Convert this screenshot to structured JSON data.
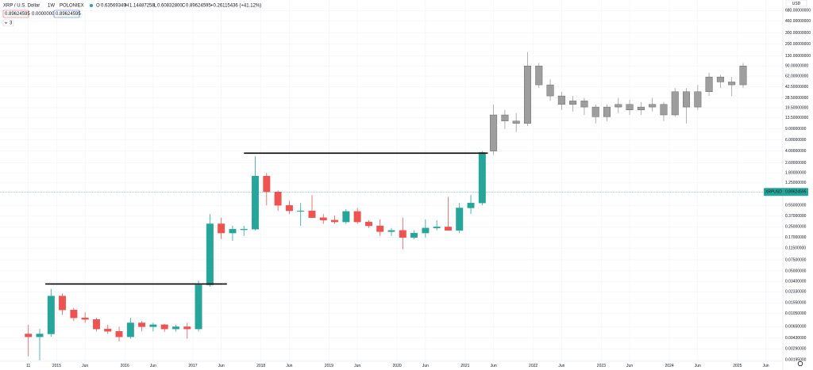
{
  "chart_data": {
    "type": "candlestick",
    "title": "XRP / U.S. Dollar",
    "interval": "1W",
    "exchange": "POLONIEX",
    "readout": {
      "o_label": "O",
      "o": "0.63569349",
      "h_label": "H",
      "h": "1.14487258",
      "l_label": "L",
      "l": "0.60832800",
      "c_label": "C",
      "c": "0.89624595",
      "change": "+0.26115436 (+41.12%)"
    },
    "inputs": [
      "0.89624595",
      "0.00000000",
      "0.89624595"
    ],
    "indicator_count": "3",
    "currency": "USD",
    "symbol": "XRPUSD",
    "last_price": {
      "value": 0.89624595,
      "label": "0.89624595"
    },
    "log_scale": true,
    "grid": true,
    "xlim": [
      "2014-03",
      "2025-09"
    ],
    "ylim": [
      0.00184,
      1000
    ],
    "xticks": [
      {
        "value": "2014-08",
        "label": "11"
      },
      {
        "value": "2015-01",
        "label": "2015"
      },
      {
        "value": "2015-06",
        "label": "Jun"
      },
      {
        "value": "2016-01",
        "label": "2016"
      },
      {
        "value": "2016-06",
        "label": "Jun"
      },
      {
        "value": "2017-01",
        "label": "2017"
      },
      {
        "value": "2017-06",
        "label": "Jun"
      },
      {
        "value": "2018-01",
        "label": "2018"
      },
      {
        "value": "2018-06",
        "label": "Jun"
      },
      {
        "value": "2019-01",
        "label": "2019"
      },
      {
        "value": "2019-06",
        "label": "Jun"
      },
      {
        "value": "2020-01",
        "label": "2020"
      },
      {
        "value": "2020-06",
        "label": "Jun"
      },
      {
        "value": "2021-01",
        "label": "2021"
      },
      {
        "value": "2021-06",
        "label": "Jun"
      },
      {
        "value": "2022-01",
        "label": "2022"
      },
      {
        "value": "2022-06",
        "label": "Jun"
      },
      {
        "value": "2023-01",
        "label": "2023"
      },
      {
        "value": "2023-06",
        "label": "Jun"
      },
      {
        "value": "2024-01",
        "label": "2024"
      },
      {
        "value": "2024-06",
        "label": "Jun"
      },
      {
        "value": "2025-01",
        "label": "2025"
      },
      {
        "value": "2025-06",
        "label": "Jun"
      }
    ],
    "yticks": [
      {
        "value": 680,
        "label": "680.00000000"
      },
      {
        "value": 460,
        "label": "460.00000000"
      },
      {
        "value": 300,
        "label": "300.00000000"
      },
      {
        "value": 200,
        "label": "200.00000000"
      },
      {
        "value": 130,
        "label": "130.00000000"
      },
      {
        "value": 90,
        "label": "90.00000000"
      },
      {
        "value": 62,
        "label": "62.00000000"
      },
      {
        "value": 42,
        "label": "42.50000000"
      },
      {
        "value": 28,
        "label": "28.50000000"
      },
      {
        "value": 19.5,
        "label": "19.50000000"
      },
      {
        "value": 13.5,
        "label": "13.50000000"
      },
      {
        "value": 9,
        "label": "9.00000000"
      },
      {
        "value": 6,
        "label": "6.00000000"
      },
      {
        "value": 4,
        "label": "4.00000000"
      },
      {
        "value": 2.6,
        "label": "2.60000000"
      },
      {
        "value": 1.8,
        "label": "1.80000000"
      },
      {
        "value": 1.25,
        "label": "1.25000000"
      },
      {
        "value": 0.55,
        "label": "0.55000000"
      },
      {
        "value": 0.37,
        "label": "0.37000000"
      },
      {
        "value": 0.25,
        "label": "0.25000000"
      },
      {
        "value": 0.17,
        "label": "0.17000000"
      },
      {
        "value": 0.115,
        "label": "0.11500000"
      },
      {
        "value": 0.075,
        "label": "0.07500000"
      },
      {
        "value": 0.05,
        "label": "0.05000000"
      },
      {
        "value": 0.034,
        "label": "0.03400000"
      },
      {
        "value": 0.0233,
        "label": "0.02330000"
      },
      {
        "value": 0.0155,
        "label": "0.01550000"
      },
      {
        "value": 0.0105,
        "label": "0.01050000"
      },
      {
        "value": 0.0065,
        "label": "0.00650000"
      },
      {
        "value": 0.0043,
        "label": "0.00430000"
      },
      {
        "value": 0.0029,
        "label": "0.00290000"
      },
      {
        "value": 0.00195,
        "label": "0.00195000"
      }
    ],
    "hlines": [
      {
        "value": 0.031,
        "from": "2014-11",
        "to": "2017-07"
      },
      {
        "value": 3.7,
        "from": "2017-10",
        "to": "2021-05"
      }
    ],
    "series": [
      {
        "up_color": "#26a69a",
        "down_color": "#ef5350",
        "x": [
          "2014-08",
          "2014-10",
          "2014-12",
          "2015-02",
          "2015-04",
          "2015-06",
          "2015-08",
          "2015-10",
          "2015-12",
          "2016-02",
          "2016-04",
          "2016-06",
          "2016-08",
          "2016-10",
          "2016-12",
          "2017-02",
          "2017-04",
          "2017-06",
          "2017-08",
          "2017-10",
          "2017-12",
          "2018-02",
          "2018-04",
          "2018-06",
          "2018-08",
          "2018-10",
          "2018-12",
          "2019-02",
          "2019-04",
          "2019-06",
          "2019-08",
          "2019-10",
          "2019-12",
          "2020-02",
          "2020-04",
          "2020-06",
          "2020-08",
          "2020-10",
          "2020-12",
          "2021-02",
          "2021-04"
        ],
        "open": [
          0.005,
          0.0045,
          0.005,
          0.02,
          0.012,
          0.009,
          0.0085,
          0.006,
          0.0055,
          0.0045,
          0.0075,
          0.0065,
          0.007,
          0.006,
          0.0065,
          0.006,
          0.03,
          0.28,
          0.2,
          0.23,
          0.23,
          1.6,
          0.9,
          0.55,
          0.45,
          0.45,
          0.35,
          0.32,
          0.3,
          0.44,
          0.3,
          0.26,
          0.21,
          0.22,
          0.17,
          0.2,
          0.24,
          0.25,
          0.22,
          0.5,
          0.6
        ],
        "high": [
          0.007,
          0.006,
          0.026,
          0.022,
          0.013,
          0.011,
          0.009,
          0.007,
          0.0065,
          0.009,
          0.008,
          0.0075,
          0.0072,
          0.007,
          0.0075,
          0.035,
          0.4,
          0.35,
          0.26,
          0.26,
          3.3,
          1.8,
          0.95,
          0.65,
          0.6,
          0.8,
          0.4,
          0.38,
          0.48,
          0.5,
          0.32,
          0.33,
          0.24,
          0.35,
          0.22,
          0.33,
          0.32,
          0.75,
          0.6,
          0.8,
          4
        ],
        "low": [
          0.0022,
          0.0019,
          0.0045,
          0.01,
          0.008,
          0.0075,
          0.0055,
          0.005,
          0.0038,
          0.0042,
          0.0055,
          0.0055,
          0.0054,
          0.0055,
          0.0042,
          0.0055,
          0.028,
          0.16,
          0.15,
          0.18,
          0.22,
          0.55,
          0.45,
          0.4,
          0.26,
          0.38,
          0.28,
          0.28,
          0.28,
          0.28,
          0.24,
          0.18,
          0.18,
          0.11,
          0.16,
          0.17,
          0.22,
          0.23,
          0.2,
          0.4,
          0.55
        ],
        "close": [
          0.0045,
          0.005,
          0.02,
          0.012,
          0.009,
          0.0085,
          0.006,
          0.0055,
          0.0045,
          0.0075,
          0.0065,
          0.007,
          0.006,
          0.0065,
          0.006,
          0.03,
          0.28,
          0.2,
          0.23,
          0.23,
          1.6,
          0.9,
          0.55,
          0.45,
          0.45,
          0.35,
          0.32,
          0.3,
          0.44,
          0.3,
          0.26,
          0.21,
          0.22,
          0.17,
          0.2,
          0.24,
          0.25,
          0.22,
          0.5,
          0.6,
          3.8
        ]
      },
      {
        "up_color": "#9e9e9e",
        "down_color": "#9e9e9e",
        "x": [
          "2021-06",
          "2021-08",
          "2021-10",
          "2021-12",
          "2022-02",
          "2022-04",
          "2022-06",
          "2022-08",
          "2022-10",
          "2022-12",
          "2023-02",
          "2023-04",
          "2023-06",
          "2023-08",
          "2023-10",
          "2023-12",
          "2024-02",
          "2024-04",
          "2024-06",
          "2024-08",
          "2024-10",
          "2024-12",
          "2025-02"
        ],
        "open": [
          4,
          15,
          12,
          11,
          90,
          45,
          30,
          22,
          25,
          20,
          14,
          20,
          22,
          18,
          20,
          22,
          15,
          35,
          20,
          35,
          60,
          50,
          45
        ],
        "high": [
          22,
          18,
          16,
          150,
          100,
          55,
          35,
          30,
          28,
          22,
          22,
          28,
          26,
          24,
          28,
          24,
          40,
          40,
          45,
          70,
          65,
          60,
          100
        ],
        "low": [
          3.5,
          9,
          8,
          10,
          40,
          25,
          18,
          17,
          15,
          11,
          12,
          16,
          15,
          15,
          17,
          12,
          14,
          11,
          18,
          30,
          40,
          30,
          40
        ],
        "close": [
          15,
          12,
          11,
          90,
          45,
          30,
          22,
          25,
          20,
          14,
          20,
          22,
          18,
          20,
          22,
          15,
          35,
          20,
          35,
          60,
          50,
          45,
          90
        ]
      }
    ]
  }
}
